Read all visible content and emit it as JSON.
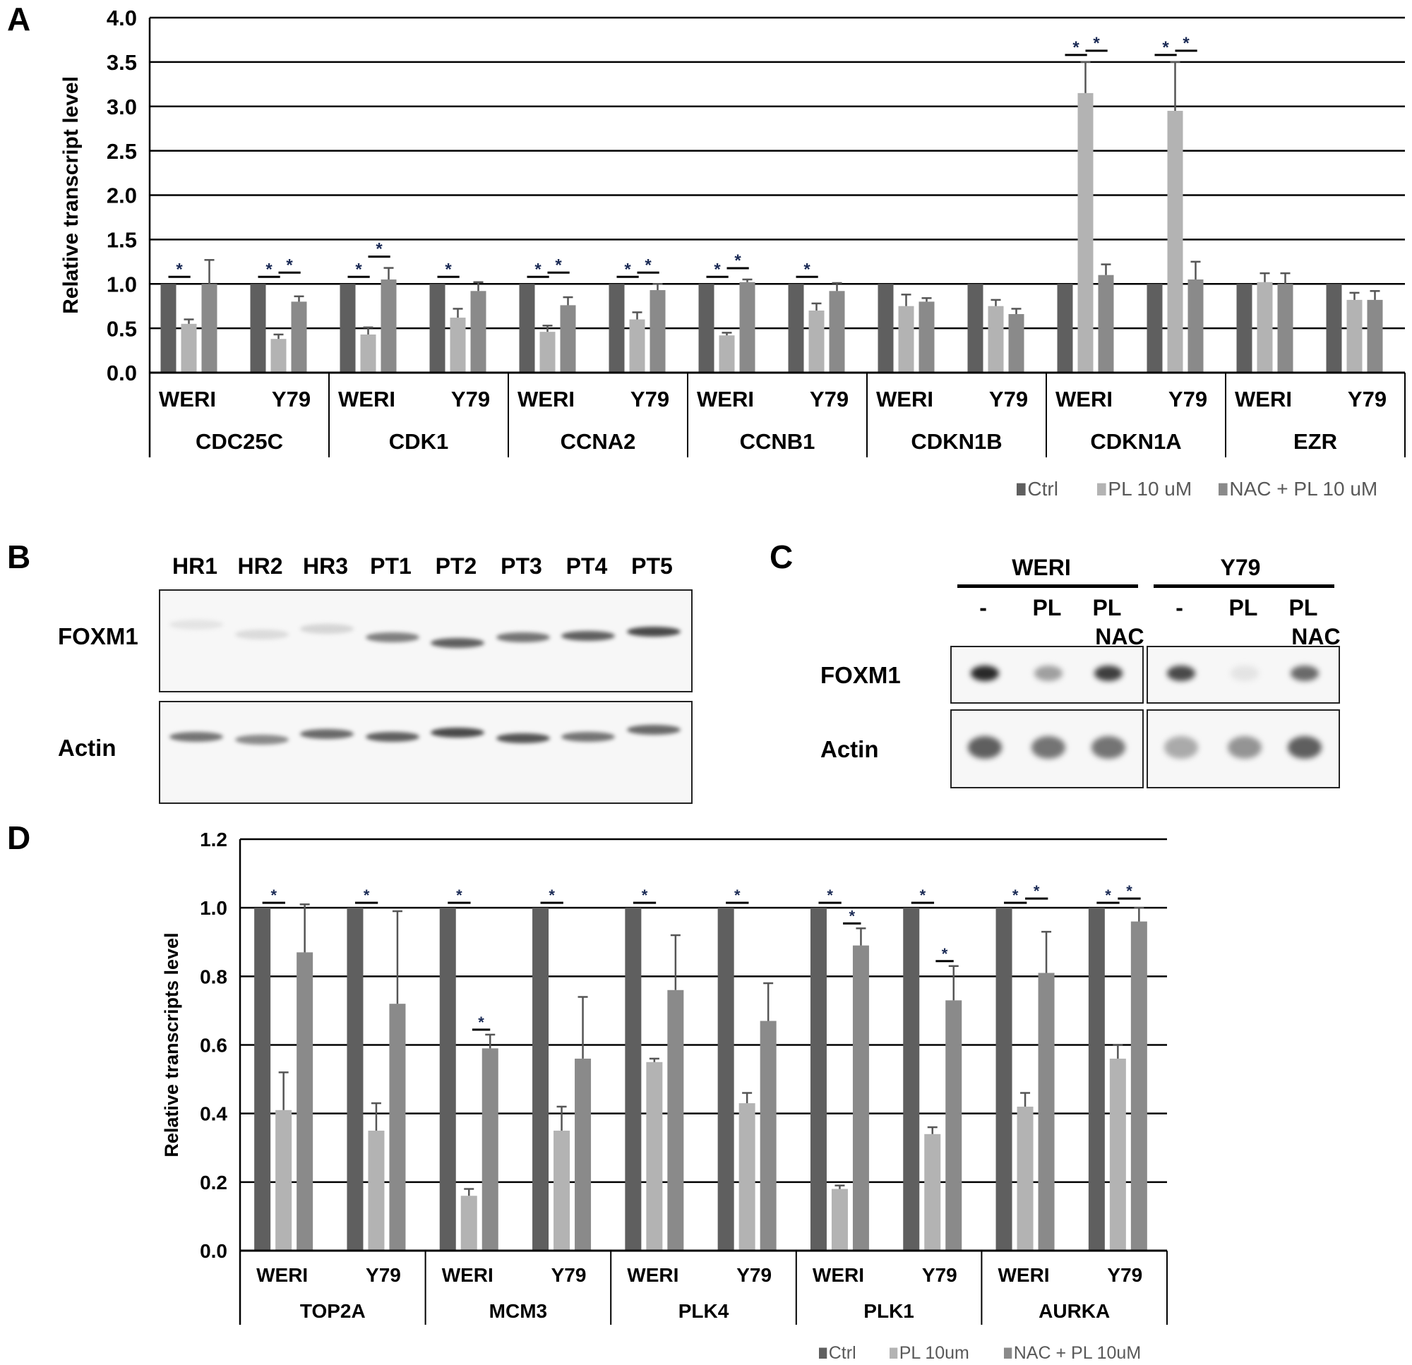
{
  "panels": {
    "A": {
      "letter": "A"
    },
    "B": {
      "letter": "B"
    },
    "C": {
      "letter": "C"
    },
    "D": {
      "letter": "D"
    }
  },
  "chart_data": [
    {
      "panel": "A",
      "type": "bar",
      "title": "",
      "ylabel": "Relative transcript level",
      "xlabel": "",
      "ylim": [
        0,
        4.0
      ],
      "yticks": [
        "0.0",
        "0.5",
        "1.0",
        "1.5",
        "2.0",
        "2.5",
        "3.0",
        "3.5",
        "4.0"
      ],
      "grid": true,
      "legend_position": "bottom-right",
      "genes": [
        "CDC25C",
        "CDK1",
        "CCNA2",
        "CCNB1",
        "CDKN1B",
        "CDKN1A",
        "EZR"
      ],
      "cell_lines": [
        "WERI",
        "Y79"
      ],
      "categories": [
        "CDC25C WERI",
        "CDC25C Y79",
        "CDK1 WERI",
        "CDK1 Y79",
        "CCNA2 WERI",
        "CCNA2 Y79",
        "CCNB1 WERI",
        "CCNB1 Y79",
        "CDKN1B WERI",
        "CDKN1B Y79",
        "CDKN1A WERI",
        "CDKN1A Y79",
        "EZR WERI",
        "EZR Y79"
      ],
      "series": [
        {
          "name": "Ctrl",
          "color": "#5f5f5f",
          "values": [
            1.0,
            1.0,
            1.0,
            1.0,
            1.0,
            1.0,
            1.0,
            1.0,
            1.0,
            1.0,
            1.0,
            1.0,
            1.0,
            1.0
          ],
          "errors": [
            0,
            0,
            0,
            0,
            0,
            0,
            0,
            0,
            0,
            0,
            0,
            0,
            0,
            0
          ]
        },
        {
          "name": "PL 10 uM",
          "color": "#b3b3b3",
          "values": [
            0.55,
            0.38,
            0.43,
            0.62,
            0.46,
            0.6,
            0.42,
            0.7,
            0.75,
            0.75,
            3.15,
            2.95,
            1.02,
            0.82
          ],
          "errors": [
            0.05,
            0.05,
            0.08,
            0.1,
            0.07,
            0.08,
            0.03,
            0.08,
            0.13,
            0.07,
            0.35,
            0.55,
            0.1,
            0.08
          ]
        },
        {
          "name": "NAC + PL 10 uM",
          "color": "#8a8a8a",
          "values": [
            1.0,
            0.8,
            1.05,
            0.92,
            0.76,
            0.93,
            1.02,
            0.92,
            0.8,
            0.66,
            1.1,
            1.05,
            1.0,
            0.82
          ],
          "errors": [
            0.27,
            0.06,
            0.13,
            0.1,
            0.09,
            0.07,
            0.03,
            0.09,
            0.04,
            0.06,
            0.12,
            0.2,
            0.12,
            0.1
          ]
        }
      ],
      "significance": [
        {
          "category": 0,
          "pairs": [
            "ctrl-pl"
          ]
        },
        {
          "category": 1,
          "pairs": [
            "ctrl-pl",
            "pl-nac"
          ]
        },
        {
          "category": 2,
          "pairs": [
            "ctrl-pl",
            "pl-nac"
          ]
        },
        {
          "category": 3,
          "pairs": [
            "ctrl-pl"
          ]
        },
        {
          "category": 4,
          "pairs": [
            "ctrl-pl",
            "pl-nac"
          ]
        },
        {
          "category": 5,
          "pairs": [
            "ctrl-pl",
            "pl-nac"
          ]
        },
        {
          "category": 6,
          "pairs": [
            "ctrl-pl",
            "pl-nac"
          ]
        },
        {
          "category": 7,
          "pairs": [
            "ctrl-pl"
          ]
        },
        {
          "category": 10,
          "pairs": [
            "ctrl-pl",
            "pl-nac"
          ]
        },
        {
          "category": 11,
          "pairs": [
            "ctrl-pl",
            "pl-nac"
          ]
        }
      ],
      "significance_marker": "*"
    },
    {
      "panel": "D",
      "type": "bar",
      "title": "",
      "ylabel": "Relative transcripts level",
      "xlabel": "",
      "ylim": [
        0,
        1.2
      ],
      "yticks": [
        "0.0",
        "0.2",
        "0.4",
        "0.6",
        "0.8",
        "1.0",
        "1.2"
      ],
      "grid": true,
      "legend_position": "bottom-right",
      "genes": [
        "TOP2A",
        "MCM3",
        "PLK4",
        "PLK1",
        "AURKA"
      ],
      "cell_lines": [
        "WERI",
        "Y79"
      ],
      "categories": [
        "TOP2A WERI",
        "TOP2A Y79",
        "MCM3 WERI",
        "MCM3 Y79",
        "PLK4 WERI",
        "PLK4 Y79",
        "PLK1 WERI",
        "PLK1 Y79",
        "AURKA WERI",
        "AURKA Y79"
      ],
      "series": [
        {
          "name": "Ctrl",
          "color": "#5f5f5f",
          "values": [
            1.0,
            1.0,
            1.0,
            1.0,
            1.0,
            1.0,
            1.0,
            1.0,
            1.0,
            1.0
          ],
          "errors": [
            0,
            0,
            0,
            0,
            0,
            0,
            0,
            0,
            0,
            0
          ]
        },
        {
          "name": "PL 10um",
          "color": "#b3b3b3",
          "values": [
            0.41,
            0.35,
            0.16,
            0.35,
            0.55,
            0.43,
            0.18,
            0.34,
            0.42,
            0.56
          ],
          "errors": [
            0.11,
            0.08,
            0.02,
            0.07,
            0.01,
            0.03,
            0.01,
            0.02,
            0.04,
            0.04
          ]
        },
        {
          "name": "NAC + PL 10uM",
          "color": "#8a8a8a",
          "values": [
            0.87,
            0.72,
            0.59,
            0.56,
            0.76,
            0.67,
            0.89,
            0.73,
            0.81,
            0.96
          ],
          "errors": [
            0.14,
            0.27,
            0.04,
            0.18,
            0.16,
            0.11,
            0.05,
            0.1,
            0.12,
            0.04
          ]
        }
      ],
      "significance": [
        {
          "category": 0,
          "pairs": [
            "ctrl-pl"
          ]
        },
        {
          "category": 1,
          "pairs": [
            "ctrl-pl"
          ]
        },
        {
          "category": 2,
          "pairs": [
            "ctrl-pl",
            "pl-nac-low"
          ]
        },
        {
          "category": 3,
          "pairs": [
            "ctrl-pl"
          ]
        },
        {
          "category": 4,
          "pairs": [
            "ctrl-pl"
          ]
        },
        {
          "category": 5,
          "pairs": [
            "ctrl-pl"
          ]
        },
        {
          "category": 6,
          "pairs": [
            "ctrl-pl",
            "pl-nac-low"
          ]
        },
        {
          "category": 7,
          "pairs": [
            "ctrl-pl",
            "pl-nac-low"
          ]
        },
        {
          "category": 8,
          "pairs": [
            "ctrl-pl",
            "pl-nac"
          ]
        },
        {
          "category": 9,
          "pairs": [
            "ctrl-pl",
            "pl-nac"
          ]
        }
      ],
      "significance_marker": "*"
    }
  ],
  "blot_B": {
    "lanes": [
      "HR1",
      "HR2",
      "HR3",
      "PT1",
      "PT2",
      "PT3",
      "PT4",
      "PT5"
    ],
    "rows": [
      {
        "label": "FOXM1",
        "intensity": [
          0.08,
          0.12,
          0.15,
          0.55,
          0.7,
          0.6,
          0.7,
          0.8
        ],
        "offset": [
          -14,
          0,
          -8,
          4,
          12,
          4,
          2,
          -4
        ]
      },
      {
        "label": "Actin",
        "intensity": [
          0.6,
          0.5,
          0.65,
          0.7,
          0.8,
          0.75,
          0.6,
          0.65
        ],
        "offset": [
          4,
          8,
          0,
          4,
          -2,
          6,
          4,
          -6
        ]
      }
    ]
  },
  "blot_C": {
    "groups": [
      {
        "name": "WERI",
        "lanes": [
          {
            "top": "-",
            "bottom": ""
          },
          {
            "top": "PL",
            "bottom": ""
          },
          {
            "top": "PL",
            "bottom": "NAC"
          }
        ]
      },
      {
        "name": "Y79",
        "lanes": [
          {
            "top": "-",
            "bottom": ""
          },
          {
            "top": "PL",
            "bottom": ""
          },
          {
            "top": "PL",
            "bottom": "NAC"
          }
        ]
      }
    ],
    "rows": [
      {
        "label": "FOXM1",
        "intensity": [
          [
            0.95,
            0.4,
            0.85
          ],
          [
            0.8,
            0.08,
            0.65
          ]
        ]
      },
      {
        "label": "Actin",
        "intensity": [
          [
            0.7,
            0.6,
            0.6
          ],
          [
            0.35,
            0.45,
            0.7
          ]
        ]
      }
    ]
  }
}
